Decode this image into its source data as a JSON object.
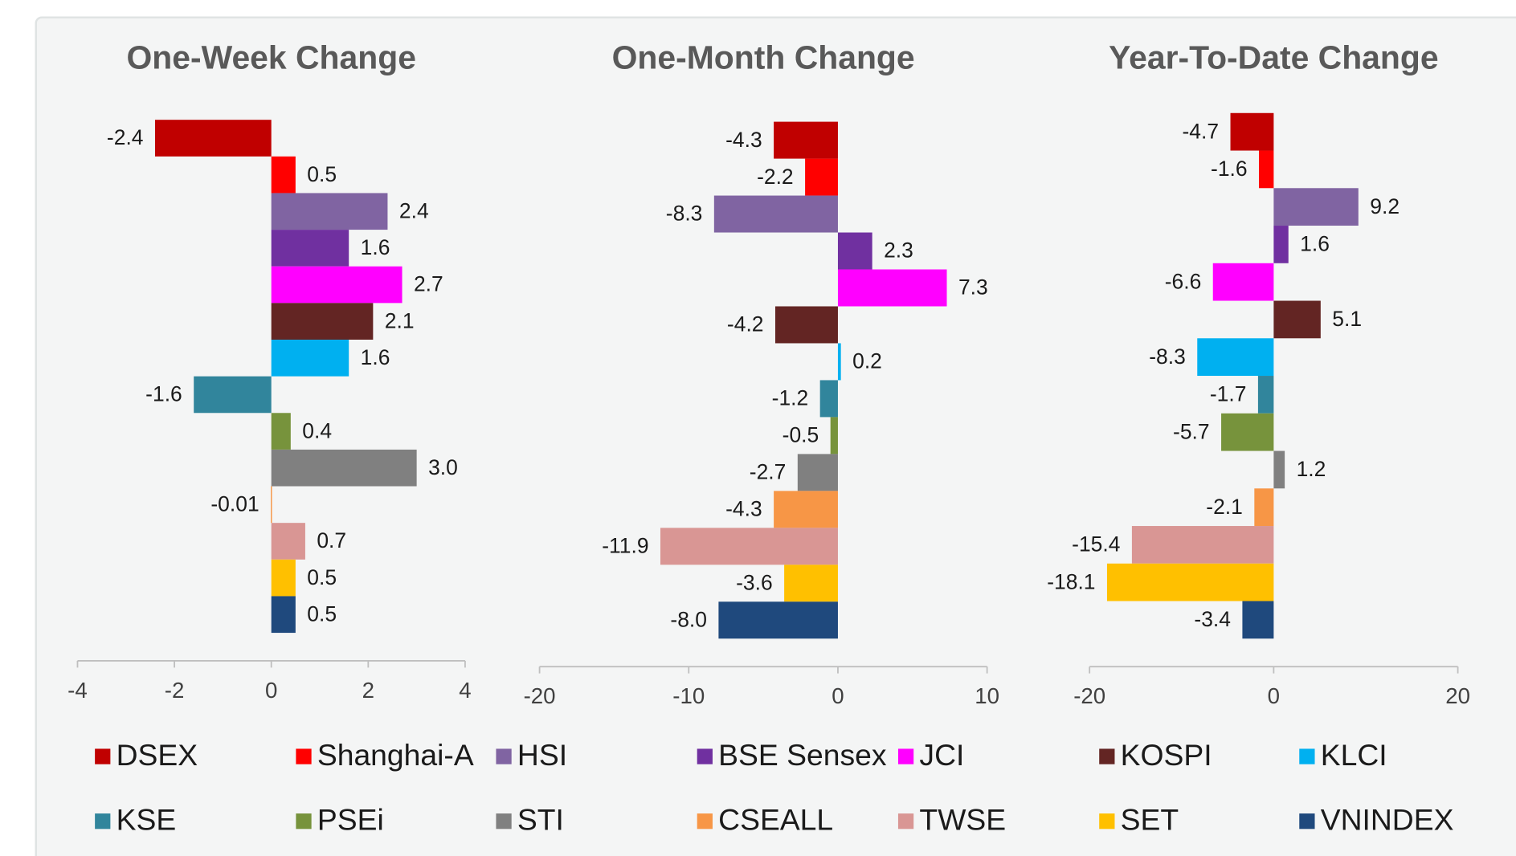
{
  "chart_data": {
    "type": "bar",
    "orientation": "horizontal",
    "panels": [
      {
        "title": "One-Week Change",
        "xlim": [
          -4,
          4
        ],
        "xticks": [
          -4,
          -2,
          0,
          2,
          4
        ]
      },
      {
        "title": "One-Month Change",
        "xlim": [
          -20,
          10
        ],
        "xticks": [
          -20,
          -10,
          0,
          10
        ]
      },
      {
        "title": "Year-To-Date Change",
        "xlim": [
          -20,
          20
        ],
        "xticks": [
          -20,
          0,
          20
        ]
      }
    ],
    "series": [
      {
        "name": "DSEX",
        "color": "#C00000",
        "values": [
          -2.4,
          -4.3,
          -4.7
        ]
      },
      {
        "name": "Shanghai-A",
        "color": "#FF0000",
        "values": [
          0.5,
          -2.2,
          -1.6
        ]
      },
      {
        "name": "HSI",
        "color": "#8064A2",
        "values": [
          2.4,
          -8.3,
          9.2
        ]
      },
      {
        "name": "BSE Sensex",
        "color": "#7030A0",
        "values": [
          1.6,
          2.3,
          1.6
        ]
      },
      {
        "name": "JCI",
        "color": "#FF00FF",
        "values": [
          2.7,
          7.3,
          -6.6
        ]
      },
      {
        "name": "KOSPI",
        "color": "#632523",
        "values": [
          2.1,
          -4.2,
          5.1
        ]
      },
      {
        "name": "KLCI",
        "color": "#00B0F0",
        "values": [
          1.6,
          0.2,
          -8.3
        ]
      },
      {
        "name": "KSE",
        "color": "#31859C",
        "values": [
          -1.6,
          -1.2,
          -1.7
        ]
      },
      {
        "name": "PSEi",
        "color": "#77933C",
        "values": [
          0.4,
          -0.5,
          -5.7
        ]
      },
      {
        "name": "STI",
        "color": "#808080",
        "values": [
          3.0,
          -2.7,
          1.2
        ],
        "value_labels": [
          "3.0",
          "-2.7",
          "1.2"
        ]
      },
      {
        "name": "CSEALL",
        "color": "#F79646",
        "values": [
          -0.01,
          -4.3,
          -2.1
        ]
      },
      {
        "name": "TWSE",
        "color": "#D99694",
        "values": [
          0.7,
          -11.9,
          -15.4
        ]
      },
      {
        "name": "SET",
        "color": "#FFC000",
        "values": [
          0.5,
          -3.6,
          -18.1
        ]
      },
      {
        "name": "VNINDEX",
        "color": "#1F497D",
        "values": [
          0.5,
          -8.0,
          -3.4
        ],
        "value_labels": [
          "0.5",
          "-8.0",
          "-3.4"
        ]
      }
    ]
  }
}
